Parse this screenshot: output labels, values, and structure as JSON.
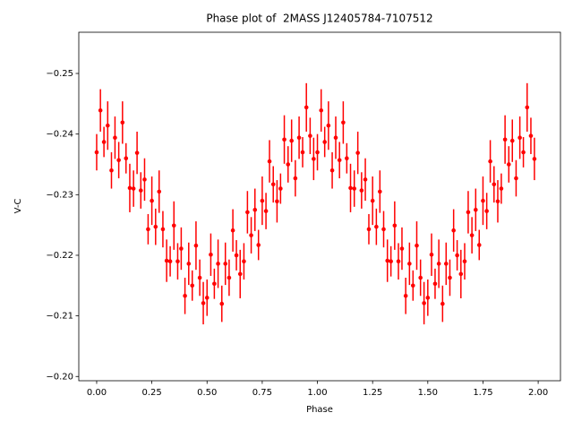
{
  "chart_data": {
    "type": "errorbar_scatter",
    "title": "Phase plot of  2MASS J12405784-7107512",
    "x_label": "Phase",
    "y_label": "V-C",
    "color": "#ff0000",
    "xlim": [
      -0.081,
      2.101
    ],
    "ylim": [
      -0.1993,
      -0.2568
    ],
    "xticks": [
      {
        "value": 0,
        "label": "0.00"
      },
      {
        "value": 0.25,
        "label": "0.25"
      },
      {
        "value": 0.5,
        "label": "0.50"
      },
      {
        "value": 0.75,
        "label": "0.75"
      },
      {
        "value": 1,
        "label": "1.00"
      },
      {
        "value": 1.25,
        "label": "1.25"
      },
      {
        "value": 1.5,
        "label": "1.50"
      },
      {
        "value": 1.75,
        "label": "1.75"
      },
      {
        "value": 2,
        "label": "2.00"
      }
    ],
    "yticks": [
      {
        "value": -0.25,
        "label": "−0.25"
      },
      {
        "value": -0.24,
        "label": "−0.24"
      },
      {
        "value": -0.23,
        "label": "−0.23"
      },
      {
        "value": -0.22,
        "label": "−0.22"
      },
      {
        "value": -0.21,
        "label": "−0.21"
      },
      {
        "value": -0.2,
        "label": "−0.20"
      }
    ],
    "x": [
      0,
      0.017,
      0.033,
      0.05,
      0.067,
      0.083,
      0.1,
      0.117,
      0.133,
      0.15,
      0.167,
      0.183,
      0.2,
      0.217,
      0.233,
      0.25,
      0.267,
      0.283,
      0.3,
      0.317,
      0.333,
      0.35,
      0.367,
      0.383,
      0.4,
      0.417,
      0.433,
      0.45,
      0.467,
      0.483,
      0.5,
      0.517,
      0.533,
      0.55,
      0.567,
      0.583,
      0.6,
      0.617,
      0.633,
      0.65,
      0.667,
      0.683,
      0.7,
      0.717,
      0.733,
      0.75,
      0.767,
      0.783,
      0.8,
      0.817,
      0.833,
      0.85,
      0.867,
      0.883,
      0.9,
      0.917,
      0.933,
      0.95,
      0.967,
      0.983,
      1,
      1.017,
      1.033,
      1.05,
      1.067,
      1.083,
      1.1,
      1.117,
      1.133,
      1.15,
      1.167,
      1.183,
      1.2,
      1.217,
      1.233,
      1.25,
      1.267,
      1.283,
      1.3,
      1.317,
      1.333,
      1.35,
      1.367,
      1.383,
      1.4,
      1.417,
      1.433,
      1.45,
      1.467,
      1.483,
      1.5,
      1.517,
      1.533,
      1.55,
      1.567,
      1.583,
      1.6,
      1.617,
      1.633,
      1.65,
      1.667,
      1.683,
      1.7,
      1.717,
      1.733,
      1.75,
      1.767,
      1.783,
      1.8,
      1.817,
      1.833,
      1.85,
      1.867,
      1.883,
      1.9,
      1.917,
      1.933,
      1.95,
      1.967,
      1.983
    ],
    "values": [
      -0.237,
      -0.2439,
      -0.2387,
      -0.2414,
      -0.234,
      -0.2394,
      -0.2357,
      -0.2419,
      -0.236,
      -0.2311,
      -0.231,
      -0.2369,
      -0.2307,
      -0.2325,
      -0.2243,
      -0.229,
      -0.2247,
      -0.2305,
      -0.2243,
      -0.2191,
      -0.219,
      -0.2249,
      -0.219,
      -0.2211,
      -0.2133,
      -0.2186,
      -0.215,
      -0.2216,
      -0.2163,
      -0.2121,
      -0.213,
      -0.2201,
      -0.2153,
      -0.2186,
      -0.212,
      -0.2186,
      -0.2163,
      -0.2241,
      -0.22,
      -0.2169,
      -0.219,
      -0.2271,
      -0.2233,
      -0.2275,
      -0.2217,
      -0.229,
      -0.2273,
      -0.2355,
      -0.2317,
      -0.2289,
      -0.231,
      -0.2391,
      -0.235,
      -0.2389,
      -0.2327,
      -0.2394,
      -0.237,
      -0.2444,
      -0.2397,
      -0.2359,
      -0.237,
      -0.2439,
      -0.2387,
      -0.2414,
      -0.234,
      -0.2394,
      -0.2357,
      -0.2419,
      -0.236,
      -0.2311,
      -0.231,
      -0.2369,
      -0.2307,
      -0.2325,
      -0.2243,
      -0.229,
      -0.2247,
      -0.2305,
      -0.2243,
      -0.2191,
      -0.219,
      -0.2249,
      -0.219,
      -0.2211,
      -0.2133,
      -0.2186,
      -0.215,
      -0.2216,
      -0.2163,
      -0.2121,
      -0.213,
      -0.2201,
      -0.2153,
      -0.2186,
      -0.212,
      -0.2186,
      -0.2163,
      -0.2241,
      -0.22,
      -0.2169,
      -0.219,
      -0.2271,
      -0.2233,
      -0.2275,
      -0.2217,
      -0.229,
      -0.2273,
      -0.2355,
      -0.2317,
      -0.2289,
      -0.231,
      -0.2391,
      -0.235,
      -0.2389,
      -0.2327,
      -0.2394,
      -0.237,
      -0.2444,
      -0.2397,
      -0.2359
    ],
    "errors": [
      0.003,
      0.0035,
      0.0025,
      0.004,
      0.003,
      0.0035,
      0.003,
      0.0035,
      0.0025,
      0.004,
      0.003,
      0.0035,
      0.003,
      0.0035,
      0.0025,
      0.004,
      0.003,
      0.0035,
      0.003,
      0.0035,
      0.0025,
      0.004,
      0.003,
      0.0035,
      0.003,
      0.0035,
      0.0025,
      0.004,
      0.003,
      0.0035,
      0.003,
      0.0035,
      0.0025,
      0.004,
      0.003,
      0.0035,
      0.003,
      0.0035,
      0.0025,
      0.004,
      0.003,
      0.0035,
      0.003,
      0.0035,
      0.0025,
      0.004,
      0.003,
      0.0035,
      0.003,
      0.0035,
      0.0025,
      0.004,
      0.003,
      0.0035,
      0.003,
      0.0035,
      0.0025,
      0.004,
      0.003,
      0.0035,
      0.003,
      0.0035,
      0.0025,
      0.004,
      0.003,
      0.0035,
      0.003,
      0.0035,
      0.0025,
      0.004,
      0.003,
      0.0035,
      0.003,
      0.0035,
      0.0025,
      0.004,
      0.003,
      0.0035,
      0.003,
      0.0035,
      0.0025,
      0.004,
      0.003,
      0.0035,
      0.003,
      0.0035,
      0.0025,
      0.004,
      0.003,
      0.0035,
      0.003,
      0.0035,
      0.0025,
      0.004,
      0.003,
      0.0035,
      0.003,
      0.0035,
      0.0025,
      0.004,
      0.003,
      0.0035,
      0.003,
      0.0035,
      0.0025,
      0.004,
      0.003,
      0.0035,
      0.003,
      0.0035,
      0.0025,
      0.004,
      0.003,
      0.0035,
      0.003,
      0.0035,
      0.0025,
      0.004,
      0.003,
      0.0035
    ]
  }
}
